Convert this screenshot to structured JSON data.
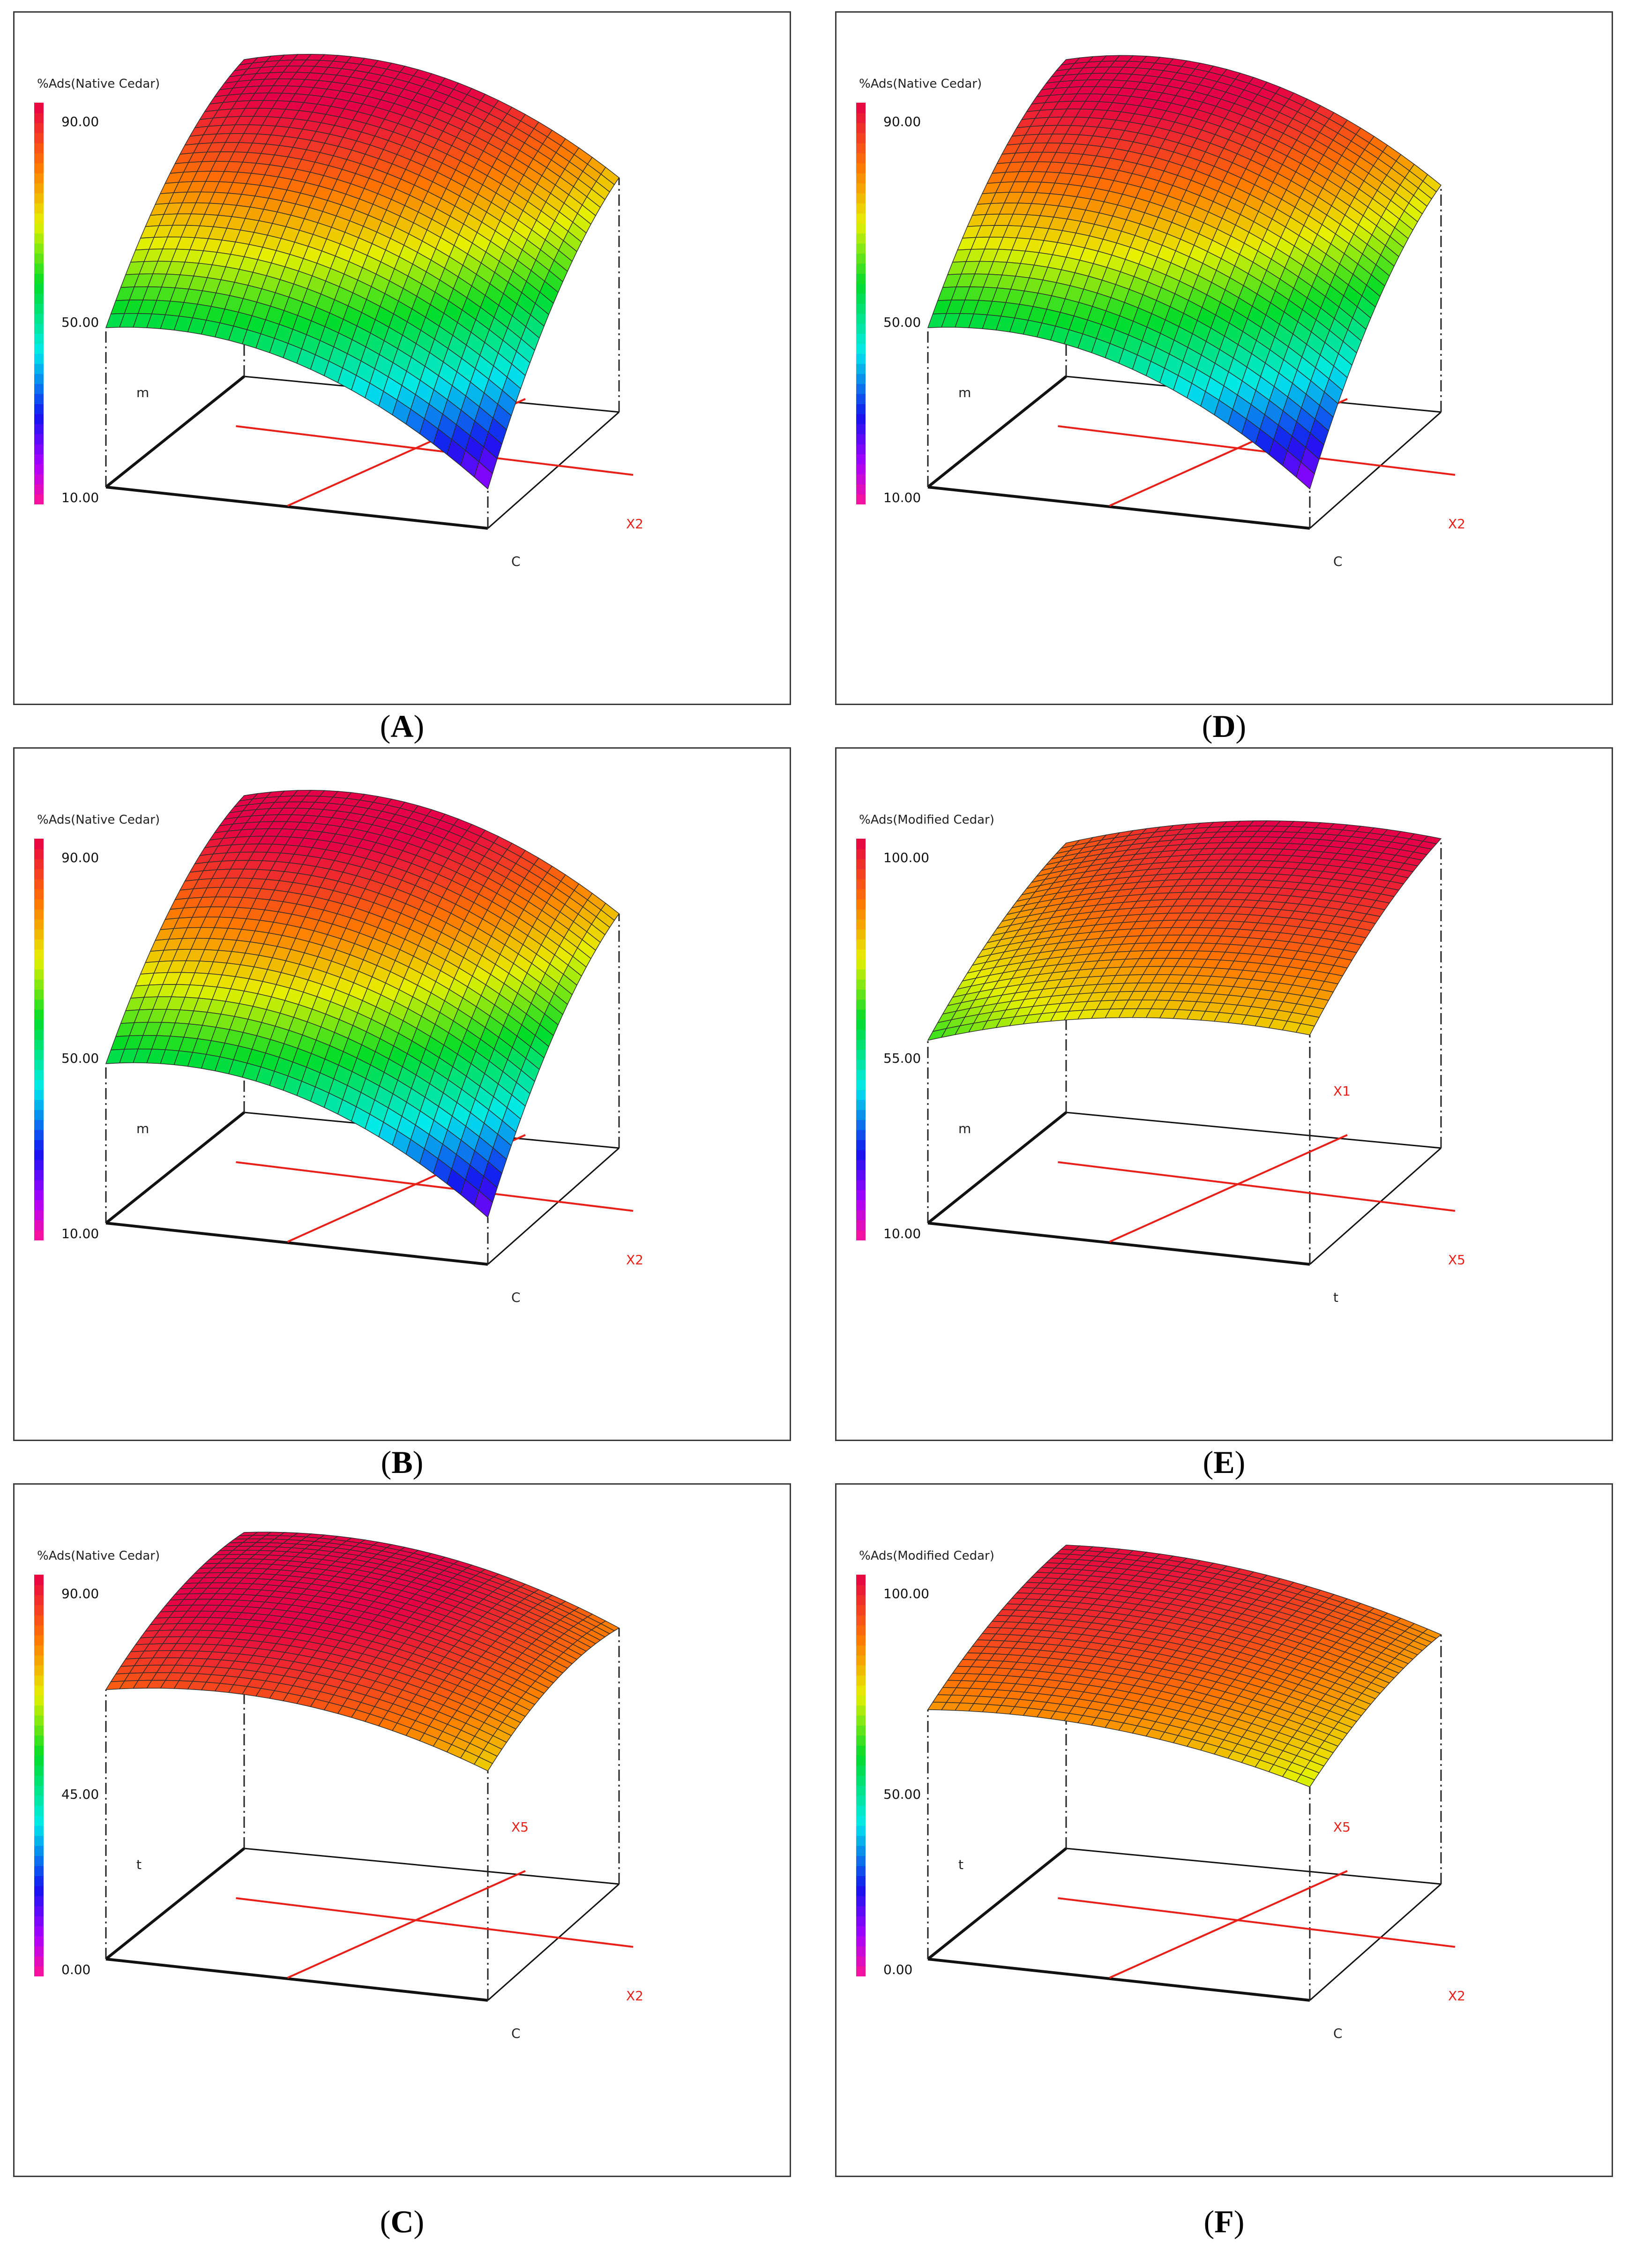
{
  "chart_data": [
    {
      "id": "A",
      "type": "surface",
      "caption_letter": "A",
      "title": "%Ads(Native Cedar)",
      "colorbar_labels": [
        "90.00",
        "50.00",
        "10.00"
      ],
      "z_range": [
        10,
        90
      ],
      "xlabel": "C",
      "ylabel": "X2",
      "zlabel": "m",
      "extra_label": "",
      "crosshair_labels": [
        "X2"
      ],
      "surface": {
        "grid": 28,
        "c00": 50,
        "c10": 18,
        "c01": 92,
        "c11": 70,
        "sag_u": 12,
        "sag_v": 8
      }
    },
    {
      "id": "B",
      "type": "surface",
      "caption_letter": "B",
      "title": "%Ads(Native Cedar)",
      "colorbar_labels": [
        "90.00",
        "50.00",
        "10.00"
      ],
      "z_range": [
        10,
        90
      ],
      "xlabel": "C",
      "ylabel": "X2",
      "zlabel": "m",
      "extra_label": "",
      "crosshair_labels": [
        "X2"
      ],
      "surface": {
        "grid": 28,
        "c00": 50,
        "c10": 20,
        "c01": 92,
        "c11": 70,
        "sag_u": 12,
        "sag_v": 8
      }
    },
    {
      "id": "C",
      "type": "surface",
      "caption_letter": "C",
      "title": "%Ads(Native Cedar)",
      "colorbar_labels": [
        "90.00",
        "45.00",
        "0.00"
      ],
      "z_range": [
        0,
        90
      ],
      "xlabel": "C",
      "ylabel": "X2",
      "zlabel": "t",
      "extra_label": "X5",
      "crosshair_labels": [
        "X2",
        "X5"
      ],
      "surface": {
        "grid": 28,
        "c00": 78,
        "c10": 66,
        "c01": 92,
        "c11": 74,
        "sag_u": 8,
        "sag_v": 5
      }
    },
    {
      "id": "D",
      "type": "surface",
      "caption_letter": "D",
      "title": "%Ads(Native Cedar)",
      "colorbar_labels": [
        "90.00",
        "50.00",
        "10.00"
      ],
      "z_range": [
        10,
        90
      ],
      "xlabel": "C",
      "ylabel": "X2",
      "zlabel": "m",
      "extra_label": "",
      "crosshair_labels": [
        "X2"
      ],
      "surface": {
        "grid": 28,
        "c00": 50,
        "c10": 18,
        "c01": 92,
        "c11": 68,
        "sag_u": 12,
        "sag_v": 8
      }
    },
    {
      "id": "E",
      "type": "surface",
      "caption_letter": "E",
      "title": "%Ads(Modified Cedar)",
      "colorbar_labels": [
        "100.00",
        "55.00",
        "10.00"
      ],
      "z_range": [
        10,
        100
      ],
      "xlabel": "t",
      "ylabel": "X5",
      "zlabel": "m",
      "extra_label": "X1",
      "crosshair_labels": [
        "X5",
        "X1"
      ],
      "surface": {
        "grid": 28,
        "c00": 62,
        "c10": 76,
        "c01": 88,
        "c11": 100,
        "sag_u": 6,
        "sag_v": 4
      }
    },
    {
      "id": "F",
      "type": "surface",
      "caption_letter": "F",
      "title": "%Ads(Modified Cedar)",
      "colorbar_labels": [
        "100.00",
        "50.00",
        "0.00"
      ],
      "z_range": [
        0,
        100
      ],
      "xlabel": "C",
      "ylabel": "X2",
      "zlabel": "t",
      "extra_label": "X5",
      "crosshair_labels": [
        "X2",
        "X5"
      ],
      "surface": {
        "grid": 28,
        "c00": 80,
        "c10": 68,
        "c01": 98,
        "c11": 80,
        "sag_u": 6,
        "sag_v": 4
      }
    }
  ]
}
